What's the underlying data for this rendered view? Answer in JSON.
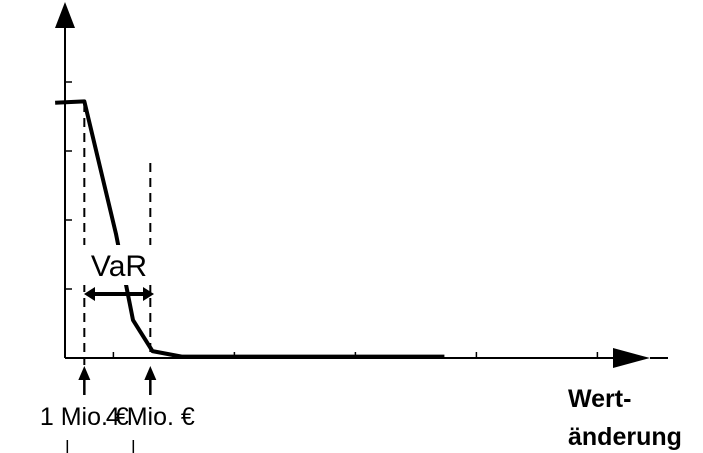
{
  "chart_data": {
    "type": "line",
    "title": "",
    "xlabel_lines": [
      "Wert-",
      "änderung"
    ],
    "ylabel": "",
    "series": [
      {
        "points": [
          [
            -0.2,
            3.7
          ],
          [
            1.0,
            3.72
          ],
          [
            2.3,
            1.8
          ],
          [
            3.0,
            0.55
          ],
          [
            3.8,
            0.1
          ],
          [
            5.0,
            0.02
          ],
          [
            8.0,
            0.02
          ],
          [
            15.8,
            0.02
          ]
        ]
      }
    ],
    "markers": [
      {
        "label": "1 Mio. €",
        "x": 1.0
      },
      {
        "label": "4 Mio. €",
        "x": 4.0
      }
    ],
    "annotation": {
      "label": "VaR",
      "from": 1.0,
      "to": 4.0
    },
    "grid": false,
    "legend": "none"
  }
}
